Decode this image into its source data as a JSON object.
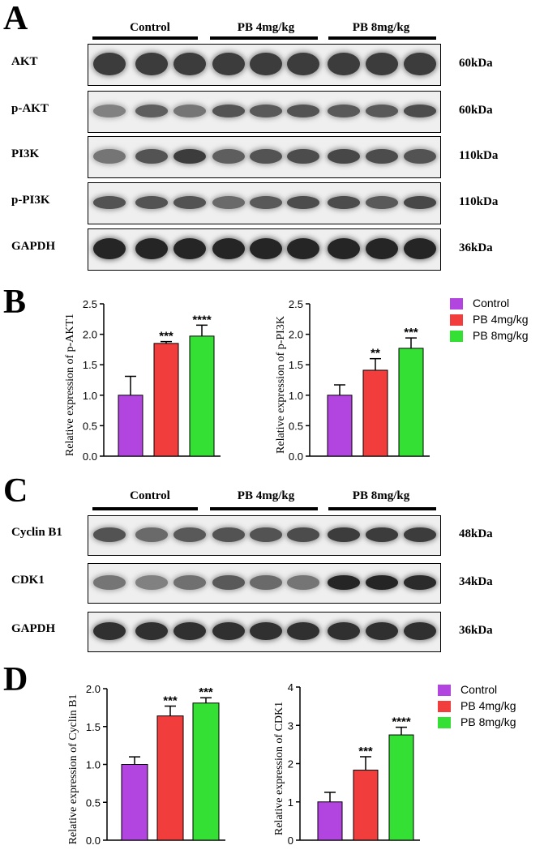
{
  "panels": {
    "A": "A",
    "B": "B",
    "C": "C",
    "D": "D"
  },
  "groups": [
    "Control",
    "PB 4mg/kg",
    "PB 8mg/kg"
  ],
  "colors": {
    "Control": "#b244e0",
    "PB 4mg/kg": "#f23d3d",
    "PB 8mg/kg": "#33e033"
  },
  "blots_A": [
    {
      "label": "AKT",
      "kda": "60kDa",
      "intensity": [
        0.85,
        0.85,
        0.85,
        0.85,
        0.85,
        0.85,
        0.85,
        0.85,
        0.85
      ],
      "thickness": 0.55
    },
    {
      "label": "p-AKT",
      "kda": "60kDa",
      "intensity": [
        0.55,
        0.7,
        0.6,
        0.75,
        0.72,
        0.75,
        0.72,
        0.72,
        0.78
      ],
      "thickness": 0.3
    },
    {
      "label": "PI3K",
      "kda": "110kDa",
      "intensity": [
        0.6,
        0.75,
        0.85,
        0.7,
        0.75,
        0.78,
        0.8,
        0.78,
        0.75
      ],
      "thickness": 0.35
    },
    {
      "label": "p-PI3K",
      "kda": "110kDa",
      "intensity": [
        0.75,
        0.75,
        0.75,
        0.65,
        0.72,
        0.78,
        0.78,
        0.72,
        0.8
      ],
      "thickness": 0.3
    },
    {
      "label": "GAPDH",
      "kda": "36kDa",
      "intensity": [
        0.95,
        0.95,
        0.95,
        0.95,
        0.95,
        0.95,
        0.95,
        0.95,
        0.95
      ],
      "thickness": 0.5
    }
  ],
  "blots_C": [
    {
      "label": "Cyclin B1",
      "kda": "48kDa",
      "intensity": [
        0.75,
        0.65,
        0.72,
        0.75,
        0.75,
        0.78,
        0.85,
        0.85,
        0.85
      ],
      "thickness": 0.35
    },
    {
      "label": "CDK1",
      "kda": "34kDa",
      "intensity": [
        0.6,
        0.55,
        0.62,
        0.72,
        0.65,
        0.6,
        0.95,
        0.95,
        0.92
      ],
      "thickness": 0.35
    },
    {
      "label": "GAPDH",
      "kda": "36kDa",
      "intensity": [
        0.9,
        0.9,
        0.9,
        0.9,
        0.9,
        0.9,
        0.9,
        0.9,
        0.9
      ],
      "thickness": 0.45
    }
  ],
  "legend": [
    "Control",
    "PB 4mg/kg",
    "PB 8mg/kg"
  ],
  "chart_data": [
    {
      "type": "bar",
      "panel": "B",
      "categories": [
        "Control",
        "PB 4mg/kg",
        "PB 8mg/kg"
      ],
      "values": [
        1.0,
        1.85,
        1.97
      ],
      "errors": [
        0.31,
        0.03,
        0.18
      ],
      "significance": [
        "",
        "***",
        "****"
      ],
      "ylabel": "Relative expression of  p-AKT1",
      "ylim": [
        0,
        2.5
      ],
      "yticks": [
        "0.0",
        "0.5",
        "1.0",
        "1.5",
        "2.0",
        "2.5"
      ]
    },
    {
      "type": "bar",
      "panel": "B",
      "categories": [
        "Control",
        "PB 4mg/kg",
        "PB 8mg/kg"
      ],
      "values": [
        1.0,
        1.41,
        1.77
      ],
      "errors": [
        0.17,
        0.19,
        0.17
      ],
      "significance": [
        "",
        "**",
        "***"
      ],
      "ylabel": "Relative expression of p-PI3K",
      "ylim": [
        0,
        2.5
      ],
      "yticks": [
        "0.0",
        "0.5",
        "1.0",
        "1.5",
        "2.0",
        "2.5"
      ]
    },
    {
      "type": "bar",
      "panel": "D",
      "categories": [
        "Control",
        "PB 4mg/kg",
        "PB 8mg/kg"
      ],
      "values": [
        1.0,
        1.64,
        1.81
      ],
      "errors": [
        0.1,
        0.13,
        0.07
      ],
      "significance": [
        "",
        "***",
        "***"
      ],
      "ylabel": "Relative expression of  Cyclin B1",
      "ylim": [
        0,
        2.0
      ],
      "yticks": [
        "0.0",
        "0.5",
        "1.0",
        "1.5",
        "2.0"
      ]
    },
    {
      "type": "bar",
      "panel": "D",
      "categories": [
        "Control",
        "PB 4mg/kg",
        "PB 8mg/kg"
      ],
      "values": [
        1.0,
        1.83,
        2.75
      ],
      "errors": [
        0.25,
        0.35,
        0.2
      ],
      "significance": [
        "",
        "***",
        "****"
      ],
      "ylabel": "Relative expression of CDK1",
      "ylim": [
        0,
        4
      ],
      "yticks": [
        "0",
        "1",
        "2",
        "3",
        "4"
      ]
    }
  ]
}
